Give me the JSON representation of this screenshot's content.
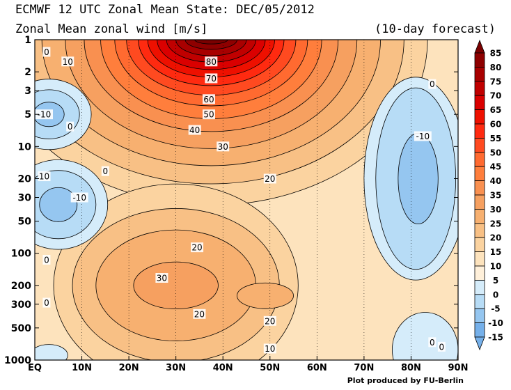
{
  "header": {
    "title": "ECMWF 12 UTC Zonal Mean State: DEC/05/2012",
    "subtitle": "Zonal Mean zonal wind [m/s]",
    "forecast": "(10-day forecast)"
  },
  "credit": "Plot produced by FU-Berlin",
  "chart_data": {
    "type": "heatmap",
    "title": "Zonal Mean zonal wind [m/s]",
    "x_ticks": [
      "EQ",
      "10N",
      "20N",
      "30N",
      "40N",
      "50N",
      "60N",
      "70N",
      "80N",
      "90N"
    ],
    "x_range": [
      0,
      90
    ],
    "y_ticks": [
      "1",
      "2",
      "3",
      "5",
      "10",
      "20",
      "30",
      "50",
      "100",
      "200",
      "300",
      "500",
      "1000"
    ],
    "y_tick_values": [
      1,
      2,
      3,
      5,
      10,
      20,
      30,
      50,
      100,
      200,
      300,
      500,
      1000
    ],
    "y_range": [
      1,
      1000
    ],
    "y_scale": "log",
    "y_inverted": true,
    "grid": true,
    "colorbar": {
      "levels": [
        "85",
        "80",
        "75",
        "70",
        "65",
        "60",
        "55",
        "50",
        "45",
        "40",
        "35",
        "30",
        "25",
        "20",
        "15",
        "10",
        "5",
        "0",
        "-5",
        "-10",
        "-15"
      ],
      "colors": [
        "#7a0000",
        "#8e0000",
        "#a80000",
        "#c00000",
        "#da0000",
        "#ee1000",
        "#ff2a10",
        "#ff4a20",
        "#ff6a30",
        "#ff7e3c",
        "#f99050",
        "#f6a060",
        "#f7b070",
        "#f8c085",
        "#fbd3a0",
        "#fde3bd",
        "#fff0da",
        "#d5ecfa",
        "#b7dcf6",
        "#95c6f0",
        "#75b0ea"
      ],
      "position": "right"
    },
    "contour_labels": [
      {
        "text": "80",
        "lat": 37.5,
        "p": 1.6
      },
      {
        "text": "70",
        "lat": 37.5,
        "p": 2.3
      },
      {
        "text": "60",
        "lat": 37.0,
        "p": 3.6
      },
      {
        "text": "50",
        "lat": 37.0,
        "p": 5.0
      },
      {
        "text": "40",
        "lat": 34.0,
        "p": 7.0
      },
      {
        "text": "30",
        "lat": 40.0,
        "p": 10.0
      },
      {
        "text": "20",
        "lat": 50.0,
        "p": 20.0
      },
      {
        "text": "20",
        "lat": 34.5,
        "p": 88.0
      },
      {
        "text": "30",
        "lat": 27.0,
        "p": 170.0
      },
      {
        "text": "20",
        "lat": 35.0,
        "p": 370.0
      },
      {
        "text": "20",
        "lat": 50.0,
        "p": 430.0
      },
      {
        "text": "10",
        "lat": 50.0,
        "p": 780.0
      },
      {
        "text": "10",
        "lat": 7.0,
        "p": 1.6
      },
      {
        "text": "10",
        "lat": 2.0,
        "p": 19.0
      },
      {
        "text": "-10",
        "lat": 9.5,
        "p": 30.0
      },
      {
        "text": "-10",
        "lat": 2.0,
        "p": 5.0
      },
      {
        "text": "0",
        "lat": 7.5,
        "p": 6.5
      },
      {
        "text": "0",
        "lat": 15.0,
        "p": 17.0
      },
      {
        "text": "0",
        "lat": 2.5,
        "p": 1.3
      },
      {
        "text": "0",
        "lat": 2.5,
        "p": 115.0
      },
      {
        "text": "0",
        "lat": 2.5,
        "p": 290.0
      },
      {
        "text": "0",
        "lat": 84.5,
        "p": 2.6
      },
      {
        "text": "-10",
        "lat": 82.5,
        "p": 8.0
      },
      {
        "text": "0",
        "lat": 84.5,
        "p": 680.0
      },
      {
        "text": "0",
        "lat": 86.5,
        "p": 750.0
      }
    ],
    "fields": {
      "background": {
        "value": "10-15",
        "color": "#fde3bd"
      },
      "stratospheric_jet": {
        "lat_center": 37.5,
        "p_core": 1.0,
        "max_value": 85
      },
      "tropospheric_jet": {
        "lat_center": 30.0,
        "p_core": 200.0,
        "max_value": 32
      },
      "easterlies": [
        {
          "lat_center": 3.0,
          "p_center": 5.0,
          "min_value": -10
        },
        {
          "lat_center": 5.0,
          "p_center": 35.0,
          "min_value": -10
        },
        {
          "lat_center": 81.0,
          "p_center": 20.0,
          "min_value": -12
        }
      ]
    }
  }
}
